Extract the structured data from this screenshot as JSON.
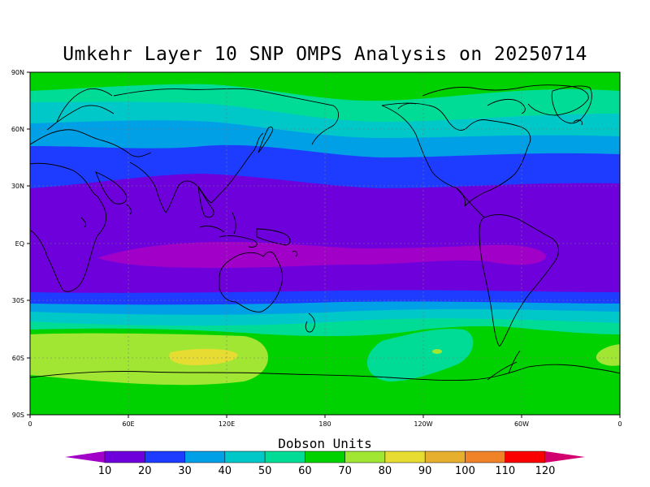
{
  "title": "Umkehr Layer 10 SNP OMPS Analysis on 20250714",
  "colorbar": {
    "title": "Dobson Units",
    "labels": [
      "10",
      "20",
      "30",
      "40",
      "50",
      "60",
      "70",
      "80",
      "90",
      "100",
      "110",
      "120"
    ],
    "colors": [
      "#a000c8",
      "#6e00dc",
      "#1e3cff",
      "#00a0e6",
      "#00c8c8",
      "#00dc96",
      "#00d200",
      "#a0e632",
      "#e6dc32",
      "#e6af2d",
      "#f08228",
      "#fa0000",
      "#d2006e"
    ]
  },
  "map": {
    "lat_ticks": [
      "90N",
      "60N",
      "30N",
      "EQ",
      "30S",
      "60S",
      "90S"
    ],
    "lon_ticks": [
      "0",
      "60E",
      "120E",
      "180",
      "120W",
      "60W",
      "0"
    ],
    "bands": [
      {
        "lat": 90,
        "value": 70
      },
      {
        "lat": 80,
        "value": 60
      },
      {
        "lat": 68,
        "value": 50
      },
      {
        "lat": 55,
        "value": 40
      },
      {
        "lat": 45,
        "value": 30
      },
      {
        "lat": 28,
        "value": 20
      },
      {
        "lat": -25,
        "value": 30
      },
      {
        "lat": -31,
        "value": 40
      },
      {
        "lat": -37,
        "value": 50
      },
      {
        "lat": -43,
        "value": 60
      },
      {
        "lat": -48,
        "value": 70
      },
      {
        "lat": -90,
        "value": 70
      }
    ]
  }
}
